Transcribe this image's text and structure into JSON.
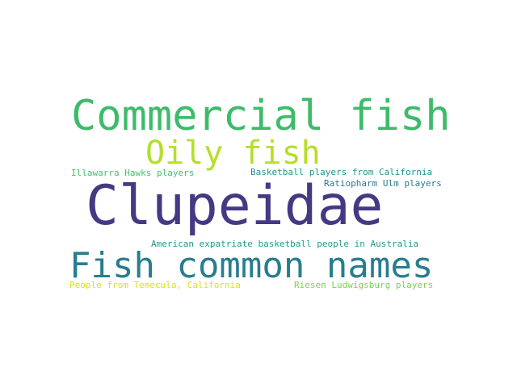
{
  "words": [
    {
      "key": "commercial",
      "text": "Commercial fish",
      "color": "#3dbb6a"
    },
    {
      "key": "oily",
      "text": "Oily fish",
      "color": "#b5de2b"
    },
    {
      "key": "illawarra",
      "text": "Illawarra Hawks players",
      "color": "#44bf70"
    },
    {
      "key": "basketball",
      "text": "Basketball players from California",
      "color": "#21918c"
    },
    {
      "key": "ratiopharm",
      "text": "Ratiopharm Ulm players",
      "color": "#2a788e"
    },
    {
      "key": "clupeidae",
      "text": "Clupeidae",
      "color": "#443983"
    },
    {
      "key": "american",
      "text": "American expatriate basketball people in Australia",
      "color": "#1f9a8a"
    },
    {
      "key": "fishcommon",
      "text": "Fish common names",
      "color": "#287d8e"
    },
    {
      "key": "temecula",
      "text": "People from Temecula, California",
      "color": "#d8e219"
    },
    {
      "key": "riesen",
      "text": "Riesen Ludwigsburg players",
      "color": "#7ad151"
    }
  ]
}
